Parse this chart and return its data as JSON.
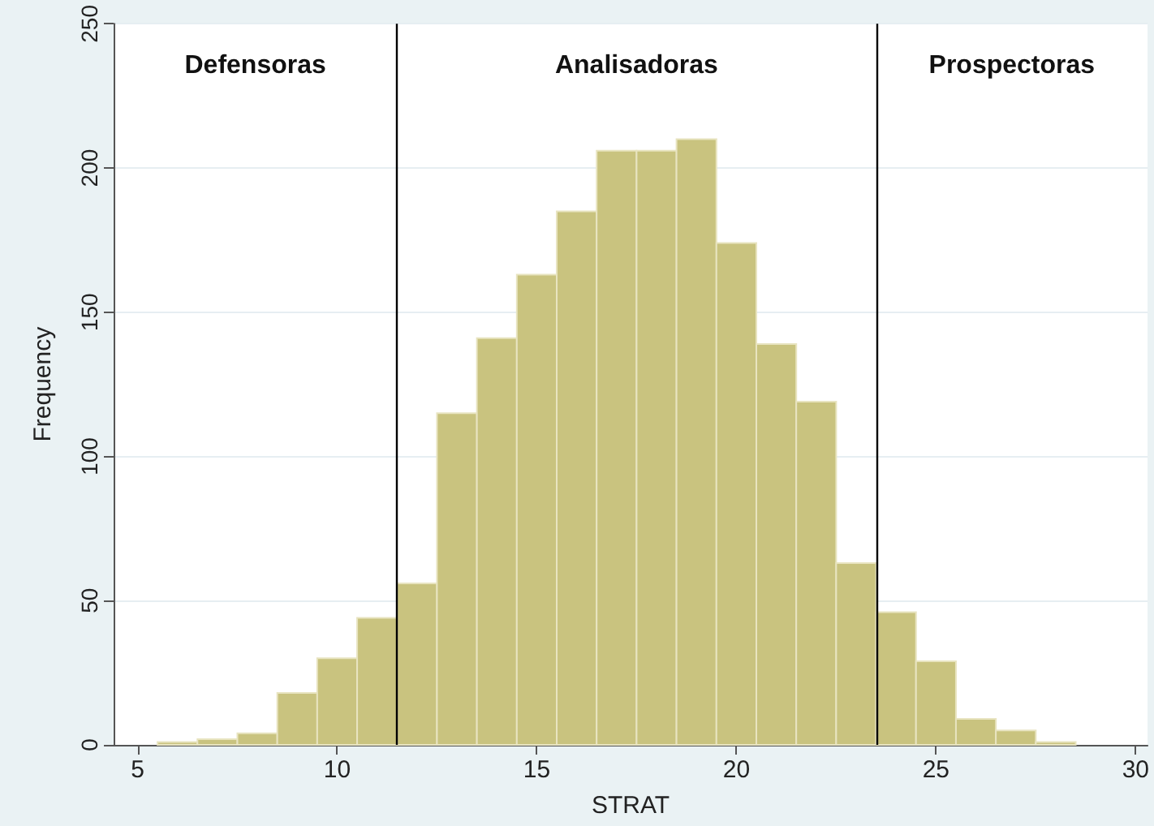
{
  "chart_data": {
    "type": "histogram",
    "xlabel": "STRAT",
    "ylabel": "Frequency",
    "bins": [
      5.5,
      6.5,
      7.5,
      8.5,
      9.5,
      10.5,
      11.5,
      12.5,
      13.5,
      14.5,
      15.5,
      16.5,
      17.5,
      18.5,
      19.5,
      20.5,
      21.5,
      22.5,
      23.5,
      24.5,
      25.5,
      26.5,
      27.5,
      28.5
    ],
    "values": [
      1,
      2,
      4,
      18,
      30,
      44,
      56,
      115,
      141,
      163,
      185,
      206,
      206,
      210,
      174,
      139,
      119,
      63,
      46,
      29,
      9,
      5,
      1
    ],
    "color": "#c9c37f",
    "xlim": [
      4.4,
      30.3
    ],
    "xticks": [
      5,
      10,
      15,
      20,
      25,
      30
    ],
    "ylim": [
      0,
      250
    ],
    "yticks": [
      0,
      50,
      100,
      150,
      200,
      250
    ],
    "grid": "y",
    "ref_lines": [
      {
        "axis": "x",
        "value": 11.5,
        "color": "#000000"
      },
      {
        "axis": "x",
        "value": 23.5,
        "color": "#000000"
      }
    ],
    "annotations": [
      "Defensoras",
      "Analisadoras",
      "Prospectoras"
    ]
  }
}
